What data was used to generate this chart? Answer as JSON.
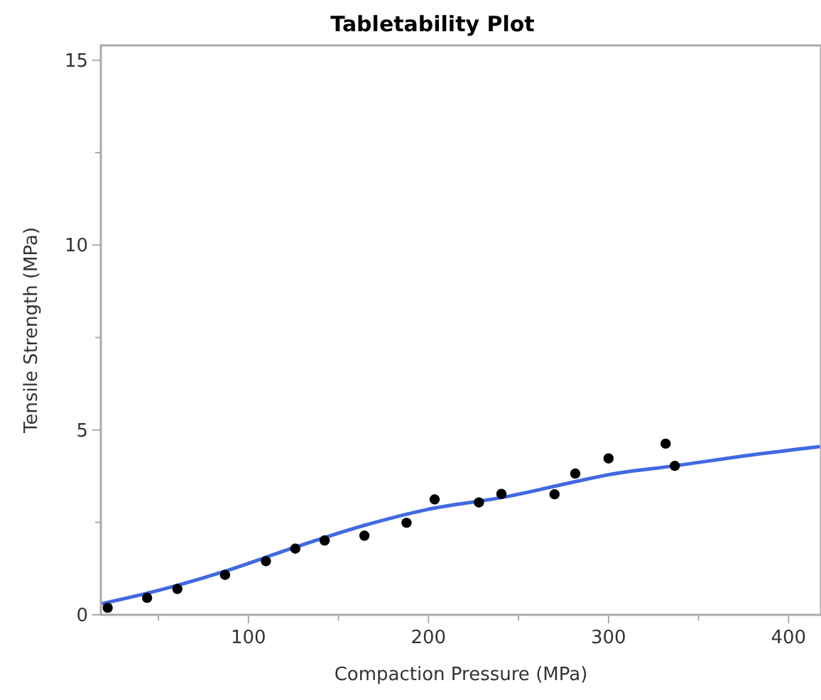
{
  "chart_data": {
    "type": "scatter",
    "title": "Tabletability Plot",
    "xlabel": "Compaction Pressure (MPa)",
    "ylabel": "Tensile Strength (MPa)",
    "xlim": [
      18,
      418
    ],
    "ylim": [
      0,
      15.4
    ],
    "xticks": [
      {
        "value": 50,
        "label": null
      },
      100,
      {
        "value": 150,
        "label": null
      },
      200,
      {
        "value": 250,
        "label": null
      },
      300,
      {
        "value": 350,
        "label": null
      },
      400
    ],
    "yticks": [
      0,
      {
        "value": 2.5,
        "label": null
      },
      5,
      {
        "value": 7.5,
        "label": null
      },
      10,
      {
        "value": 12.5,
        "label": null
      },
      15
    ],
    "grid": false,
    "series": [
      {
        "color": "#000000",
        "marker": "circle",
        "x": [
          21.8,
          43.7,
          60.5,
          87,
          109.7,
          126,
          142.3,
          164.4,
          187.8,
          203.4,
          228,
          240.5,
          270,
          281.5,
          300,
          331.7,
          336.8
        ],
        "values": [
          0.19,
          0.46,
          0.7,
          1.08,
          1.45,
          1.79,
          2.01,
          2.14,
          2.49,
          3.12,
          3.04,
          3.27,
          3.26,
          3.82,
          4.23,
          4.63,
          4.03
        ]
      },
      {
        "type": "line",
        "color": "#4169e1",
        "marker": "none",
        "line_style": "solid",
        "x": [
          18.5,
          50,
          87,
          126,
          164.4,
          199.5,
          240.5,
          281.5,
          300,
          336.8,
          374.4,
          417.5
        ],
        "values": [
          0.3,
          0.66,
          1.18,
          1.83,
          2.42,
          2.85,
          3.17,
          3.6,
          3.79,
          4.03,
          4.29,
          4.55
        ]
      }
    ]
  }
}
